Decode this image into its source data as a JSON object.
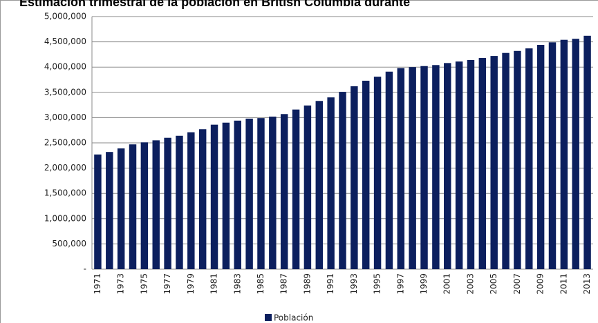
{
  "chart_data": {
    "type": "bar",
    "title": "Estimación  trimestral de la población en British Columbia durante",
    "categories": [
      "1971",
      null,
      "1973",
      null,
      "1975",
      null,
      "1977",
      null,
      "1979",
      null,
      "1981",
      null,
      "1983",
      null,
      "1985",
      null,
      "1987",
      null,
      "1989",
      null,
      "1991",
      null,
      "1993",
      null,
      "1995",
      null,
      "1997",
      null,
      "1999",
      null,
      "2001",
      null,
      "2003",
      null,
      "2005",
      null,
      "2007",
      null,
      "2009",
      null,
      "2011",
      null,
      "2013"
    ],
    "series": [
      {
        "name": "Población",
        "color": "#0c1f5e",
        "values": [
          2270000,
          2320000,
          2390000,
          2470000,
          2510000,
          2550000,
          2600000,
          2640000,
          2710000,
          2770000,
          2860000,
          2900000,
          2940000,
          2980000,
          2990000,
          3020000,
          3070000,
          3160000,
          3240000,
          3330000,
          3400000,
          3510000,
          3620000,
          3730000,
          3810000,
          3910000,
          3980000,
          4000000,
          4020000,
          4040000,
          4080000,
          4110000,
          4140000,
          4180000,
          4220000,
          4280000,
          4320000,
          4370000,
          4440000,
          4490000,
          4540000,
          4560000,
          4620000
        ]
      }
    ],
    "ylim": [
      0,
      5000000
    ],
    "yticks": [
      {
        "value": 0,
        "label": "-"
      },
      {
        "value": 500000,
        "label": "500,000"
      },
      {
        "value": 1000000,
        "label": "1,000,000"
      },
      {
        "value": 1500000,
        "label": "1,500,000"
      },
      {
        "value": 2000000,
        "label": "2,000,000"
      },
      {
        "value": 2500000,
        "label": "2,500,000"
      },
      {
        "value": 3000000,
        "label": "3,000,000"
      },
      {
        "value": 3500000,
        "label": "3,500,000"
      },
      {
        "value": 4000000,
        "label": "4,000,000"
      },
      {
        "value": 4500000,
        "label": "4,500,000"
      },
      {
        "value": 5000000,
        "label": "5,000,000"
      }
    ],
    "grid": true,
    "legend": "bottom"
  }
}
